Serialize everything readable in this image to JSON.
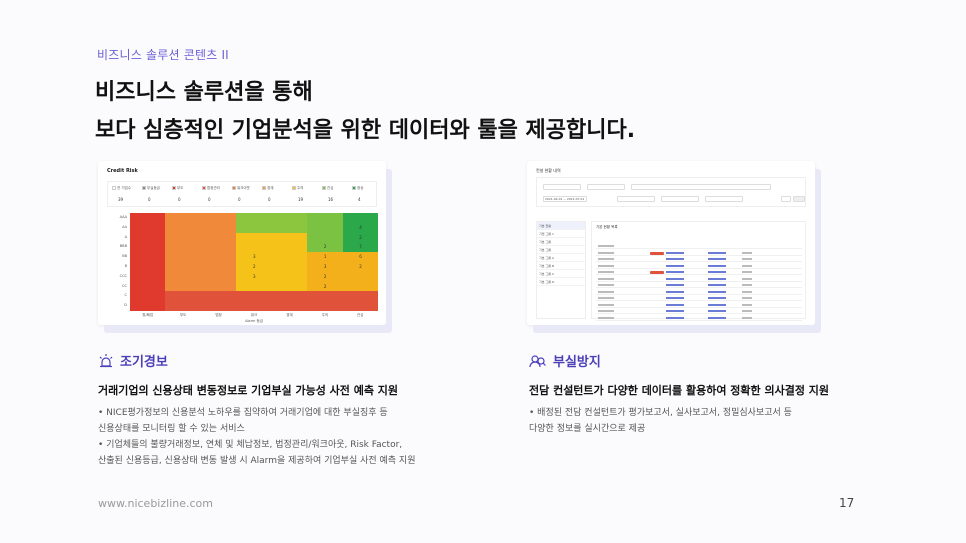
{
  "header": {
    "kicker": "비즈니스 솔루션 콘텐츠 II",
    "title_line1": "비즈니스 솔루션을 통해",
    "title_line2": "보다 심층적인 기업분석을 위한 데이터와 툴을 제공합니다."
  },
  "left_mockup": {
    "title": "Credit Risk",
    "legend": [
      {
        "label": "전 기업수",
        "color": "#ffffff",
        "count": "39"
      },
      {
        "label": "부실등급",
        "color": "#888888",
        "count": "0"
      },
      {
        "label": "부도",
        "color": "#e03a2f",
        "count": "0"
      },
      {
        "label": "법정관리",
        "color": "#e0533a",
        "count": "0"
      },
      {
        "label": "워크아웃",
        "color": "#ee7a30",
        "count": "0"
      },
      {
        "label": "경계",
        "color": "#f39a3a",
        "count": "0"
      },
      {
        "label": "주의",
        "color": "#f5c21a",
        "count": "19"
      },
      {
        "label": "관심",
        "color": "#7cc242",
        "count": "16"
      },
      {
        "label": "정상",
        "color": "#2aa84a",
        "count": "4"
      }
    ],
    "grades": [
      "AAA",
      "AA",
      "A",
      "BBB",
      "BB",
      "B",
      "CCC",
      "CC",
      "C",
      "D"
    ],
    "columns": [
      "휴/폐업",
      "부도",
      "법정",
      "워크",
      "경계",
      "주의",
      "관심"
    ],
    "axis_label": "Alarm 등급",
    "numbers": [
      {
        "row": 1,
        "col": 6,
        "text": "4"
      },
      {
        "row": 2,
        "col": 6,
        "text": "2"
      },
      {
        "row": 3,
        "col": 5,
        "text": "2"
      },
      {
        "row": 3,
        "col": 6,
        "text": "7"
      },
      {
        "row": 4,
        "col": 3,
        "text": "3"
      },
      {
        "row": 4,
        "col": 5,
        "text": "1"
      },
      {
        "row": 4,
        "col": 6,
        "text": "6"
      },
      {
        "row": 5,
        "col": 3,
        "text": "2"
      },
      {
        "row": 5,
        "col": 5,
        "text": "3"
      },
      {
        "row": 5,
        "col": 6,
        "text": "2"
      },
      {
        "row": 6,
        "col": 3,
        "text": "3"
      },
      {
        "row": 6,
        "col": 5,
        "text": "2"
      },
      {
        "row": 7,
        "col": 5,
        "text": "2"
      }
    ]
  },
  "right_mockup": {
    "title": "컨설 현황 내역",
    "date_range": "2021-04-01 ~ 2021-07-01",
    "side_items": [
      "기본 현황",
      "기업 그룹 1",
      "기본 그룹",
      "기본 그룹",
      "기본 그룹 A",
      "기본 그룹 B",
      "기본 그룹 C",
      "기본 그룹 D"
    ],
    "main_title": "기본 현황 목록"
  },
  "section_left": {
    "title": "조기경보",
    "subtitle": "거래기업의 신용상태 변동정보로 기업부실 가능성 사전 예측 지원",
    "bullets": [
      "•  NICE평가정보의 신용분석 노하우를 집약하여 거래기업에 대한  부실징후 등",
      "신용상태를 모니터링  할 수 있는 서비스",
      "•  기업체들의 불량거래정보, 연체 및 체납정보, 법정관리/워크아웃, Risk Factor,",
      "산출된 신용등급, 신용상태 변동 발생 시 Alarm을 제공하여 기업부실 사전 예측 지원"
    ]
  },
  "section_right": {
    "title": "부실방지",
    "subtitle": "전담 컨설턴트가 다양한 데이터를 활용하여 정확한 의사결정 지원",
    "bullets": [
      "•  배정된 전담 컨설턴트가 평가보고서, 실사보고서, 정밀심사보고서 등",
      "다양한 정보를 실시간으로 제공"
    ]
  },
  "footer": {
    "url": "www.nicebizline.com",
    "page": "17"
  }
}
